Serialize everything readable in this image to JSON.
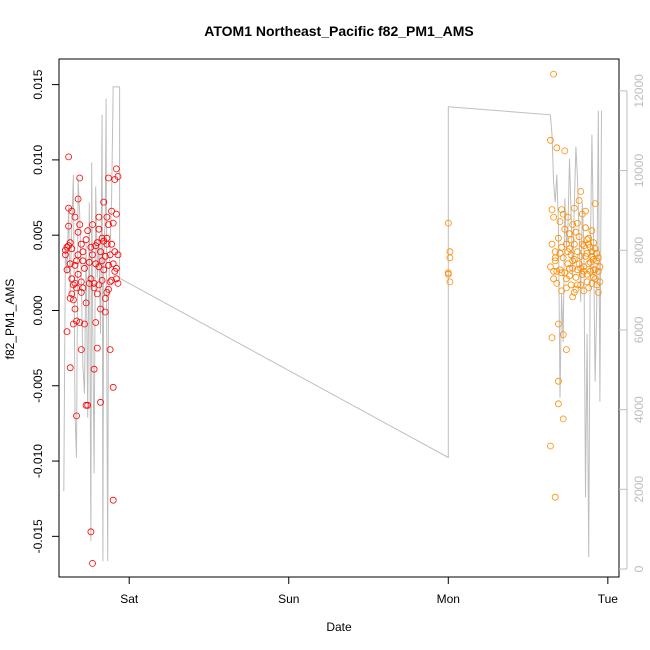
{
  "chart_data": {
    "type": "scatter",
    "title": "ATOM1 Northeast_Pacific f82_PM1_AMS",
    "xlabel": "Date",
    "ylabel": "f82_PM1_AMS",
    "x_ticks": [
      "Sat",
      "Sun",
      "Mon",
      "Tue"
    ],
    "x_tick_values": [
      0,
      1,
      2,
      3
    ],
    "xlim": [
      -0.44,
      3.07
    ],
    "y_ticks": [
      -0.015,
      -0.01,
      -0.005,
      0.0,
      0.005,
      0.01,
      0.015
    ],
    "y_tick_labels": [
      "-0.015",
      "-0.010",
      "-0.005",
      "0.000",
      "0.005",
      "0.010",
      "0.015"
    ],
    "ylim": [
      -0.0177,
      0.0167
    ],
    "y2_ticks": [
      0,
      2000,
      4000,
      6000,
      8000,
      10000,
      12000
    ],
    "y2_tick_labels": [
      "0",
      "2000",
      "4000",
      "6000",
      "8000",
      "10000",
      "12000"
    ],
    "y2lim": [
      -200,
      12800
    ],
    "grid": false,
    "colors": {
      "series_1": "#ff0000",
      "series_2": "#ff8c00",
      "secondary_line": "#bebebe",
      "frame": "#000000"
    },
    "series": [
      {
        "color": "#ff0000",
        "points": [
          [
            -0.4,
            0.004
          ],
          [
            -0.4,
            0.0037
          ],
          [
            -0.39,
            0.0042
          ],
          [
            -0.39,
            0.0027
          ],
          [
            -0.39,
            -0.0014
          ],
          [
            -0.38,
            0.0102
          ],
          [
            -0.38,
            0.0068
          ],
          [
            -0.38,
            0.0056
          ],
          [
            -0.38,
            0.0043
          ],
          [
            -0.37,
            0.0008
          ],
          [
            -0.37,
            -0.0038
          ],
          [
            -0.37,
            0.0031
          ],
          [
            -0.36,
            0.0021
          ],
          [
            -0.36,
            0.0066
          ],
          [
            -0.36,
            0.0041
          ],
          [
            -0.36,
            0.0011
          ],
          [
            -0.35,
            0.0017
          ],
          [
            -0.35,
            0.0007
          ],
          [
            -0.35,
            -0.0009
          ],
          [
            -0.34,
            0.0018
          ],
          [
            -0.34,
            0.0001
          ],
          [
            -0.34,
            0.0062
          ],
          [
            -0.34,
            0.003
          ],
          [
            -0.33,
            -0.0007
          ],
          [
            -0.33,
            -0.007
          ],
          [
            -0.33,
            0.0015
          ],
          [
            -0.32,
            0.0074
          ],
          [
            -0.32,
            0.0052
          ],
          [
            -0.32,
            0.0037
          ],
          [
            -0.32,
            0.0024
          ],
          [
            -0.31,
            -0.0008
          ],
          [
            -0.31,
            0.0088
          ],
          [
            -0.31,
            0.0057
          ],
          [
            -0.3,
            0.0044
          ],
          [
            -0.3,
            0.0019
          ],
          [
            -0.3,
            -0.0026
          ],
          [
            -0.29,
            0.0033
          ],
          [
            -0.29,
            0.0015
          ],
          [
            -0.28,
            0.0028
          ],
          [
            -0.28,
            -0.0009
          ],
          [
            -0.27,
            0.0047
          ],
          [
            -0.27,
            -0.0063
          ],
          [
            -0.26,
            0.0053
          ],
          [
            -0.26,
            -0.0063
          ],
          [
            -0.25,
            0.0018
          ],
          [
            -0.25,
            0.0032
          ],
          [
            -0.24,
            0.0042
          ],
          [
            -0.24,
            -0.0147
          ],
          [
            -0.23,
            -0.0168
          ],
          [
            -0.23,
            0.0057
          ],
          [
            -0.23,
            0.0037
          ],
          [
            -0.22,
            -0.0039
          ],
          [
            -0.22,
            0.0015
          ],
          [
            -0.22,
            0.0018
          ],
          [
            -0.21,
            0.0043
          ],
          [
            -0.21,
            -0.0008
          ],
          [
            -0.2,
            0.0045
          ],
          [
            -0.2,
            0.0011
          ],
          [
            -0.2,
            -0.0025
          ],
          [
            -0.19,
            0.0054
          ],
          [
            -0.19,
            0.0029
          ],
          [
            -0.19,
            0.0062
          ],
          [
            -0.18,
            0.0039
          ],
          [
            -0.18,
            -0.0061
          ],
          [
            -0.18,
            0.0001
          ],
          [
            -0.17,
            0.0048
          ],
          [
            -0.17,
            0.002
          ],
          [
            -0.17,
            0.0033
          ],
          [
            -0.16,
            0.0072
          ],
          [
            -0.16,
            0.0046
          ],
          [
            -0.16,
            0.0027
          ],
          [
            -0.15,
            0.0008
          ],
          [
            -0.15,
            -0.0001
          ],
          [
            -0.15,
            0.0036
          ],
          [
            -0.14,
            0.0062
          ],
          [
            -0.14,
            0.0044
          ],
          [
            -0.14,
            0.0012
          ],
          [
            -0.13,
            0.0088
          ],
          [
            -0.13,
            0.0057
          ],
          [
            -0.13,
            0.003
          ],
          [
            -0.12,
            0.0037
          ],
          [
            -0.12,
            0.0019
          ],
          [
            -0.12,
            -0.0026
          ],
          [
            -0.11,
            0.0066
          ],
          [
            -0.11,
            0.0044
          ],
          [
            -0.11,
            0.002
          ],
          [
            -0.1,
            -0.0051
          ],
          [
            -0.1,
            -0.0126
          ],
          [
            -0.1,
            0.0058
          ],
          [
            -0.09,
            0.0039
          ],
          [
            -0.09,
            0.0026
          ],
          [
            -0.09,
            0.0087
          ],
          [
            -0.08,
            0.0094
          ],
          [
            -0.08,
            0.0064
          ],
          [
            -0.08,
            0.0021
          ],
          [
            -0.07,
            0.0089
          ],
          [
            -0.07,
            0.0037
          ],
          [
            -0.07,
            0.0018
          ],
          [
            -0.37,
            0.0045
          ],
          [
            -0.29,
            0.0039
          ],
          [
            -0.27,
            0.0005
          ],
          [
            -0.24,
            0.0021
          ],
          [
            -0.21,
            0.0031
          ],
          [
            -0.13,
            0.0014
          ],
          [
            -0.1,
            0.0031
          ],
          [
            -0.08,
            0.0028
          ],
          [
            -0.14,
            0.0048
          ],
          [
            -0.19,
            0.0017
          ],
          [
            -0.33,
            0.0033
          ],
          [
            -0.3,
            0.0012
          ]
        ]
      },
      {
        "color": "#ff8c00",
        "points": [
          [
            2.0,
            0.0058
          ],
          [
            2.0,
            0.0025
          ],
          [
            2.0,
            0.0024
          ],
          [
            2.01,
            0.0039
          ],
          [
            2.01,
            0.0035
          ],
          [
            2.01,
            0.0019
          ],
          [
            2.64,
            0.0113
          ],
          [
            2.64,
            -0.009
          ],
          [
            2.64,
            0.0029
          ],
          [
            2.65,
            0.0044
          ],
          [
            2.65,
            0.0067
          ],
          [
            2.65,
            -0.0018
          ],
          [
            2.66,
            0.0026
          ],
          [
            2.66,
            0.0157
          ],
          [
            2.66,
            0.0062
          ],
          [
            2.67,
            0.0039
          ],
          [
            2.67,
            -0.0124
          ],
          [
            2.67,
            0.0035
          ],
          [
            2.68,
            0.0026
          ],
          [
            2.68,
            0.0108
          ],
          [
            2.68,
            0.0018
          ],
          [
            2.69,
            0.0048
          ],
          [
            2.69,
            -0.0062
          ],
          [
            2.69,
            -0.0047
          ],
          [
            2.7,
            0.0027
          ],
          [
            2.7,
            0.0038
          ],
          [
            2.7,
            0.0059
          ],
          [
            2.71,
            0.0013
          ],
          [
            2.71,
            0.0067
          ],
          [
            2.71,
            0.0025
          ],
          [
            2.72,
            -0.0016
          ],
          [
            2.72,
            -0.0072
          ],
          [
            2.72,
            0.0035
          ],
          [
            2.73,
            0.0106
          ],
          [
            2.73,
            0.0054
          ],
          [
            2.73,
            0.0025
          ],
          [
            2.74,
            0.0044
          ],
          [
            2.74,
            -0.0026
          ],
          [
            2.74,
            0.0015
          ],
          [
            2.75,
            0.0062
          ],
          [
            2.75,
            0.0031
          ],
          [
            2.75,
            0.0039
          ],
          [
            2.76,
            0.0023
          ],
          [
            2.76,
            0.0051
          ],
          [
            2.76,
            0.0028
          ],
          [
            2.77,
            0.0037
          ],
          [
            2.77,
            0.0017
          ],
          [
            2.77,
            0.0047
          ],
          [
            2.78,
            0.0057
          ],
          [
            2.78,
            0.0028
          ],
          [
            2.78,
            0.0009
          ],
          [
            2.79,
            0.0044
          ],
          [
            2.79,
            0.0068
          ],
          [
            2.79,
            0.0034
          ],
          [
            2.8,
            0.0022
          ],
          [
            2.8,
            0.0052
          ],
          [
            2.8,
            0.0014
          ],
          [
            2.81,
            0.0039
          ],
          [
            2.81,
            0.0058
          ],
          [
            2.81,
            0.0027
          ],
          [
            2.82,
            0.0073
          ],
          [
            2.82,
            0.0031
          ],
          [
            2.82,
            0.0049
          ],
          [
            2.83,
            0.0017
          ],
          [
            2.83,
            0.0079
          ],
          [
            2.83,
            0.0036
          ],
          [
            2.84,
            0.0044
          ],
          [
            2.84,
            0.0024
          ],
          [
            2.84,
            0.0064
          ],
          [
            2.85,
            0.0013
          ],
          [
            2.85,
            0.0043
          ],
          [
            2.85,
            0.0029
          ],
          [
            2.86,
            0.0055
          ],
          [
            2.86,
            0.0036
          ],
          [
            2.86,
            0.0066
          ],
          [
            2.87,
            0.0024
          ],
          [
            2.87,
            0.0047
          ],
          [
            2.87,
            0.0038
          ],
          [
            2.88,
            0.0015
          ],
          [
            2.88,
            0.0031
          ],
          [
            2.88,
            0.0044
          ],
          [
            2.89,
            0.0026
          ],
          [
            2.89,
            0.0042
          ],
          [
            2.89,
            0.0032
          ],
          [
            2.9,
            0.0053
          ],
          [
            2.9,
            0.0018
          ],
          [
            2.9,
            0.0039
          ],
          [
            2.91,
            0.0027
          ],
          [
            2.91,
            0.0045
          ],
          [
            2.91,
            0.0034
          ],
          [
            2.92,
            0.0021
          ],
          [
            2.92,
            0.0041
          ],
          [
            2.92,
            0.0071
          ],
          [
            2.93,
            0.0033
          ],
          [
            2.93,
            0.0017
          ],
          [
            2.93,
            0.0038
          ],
          [
            2.94,
            0.0026
          ],
          [
            2.94,
            0.0012
          ],
          [
            2.94,
            0.0035
          ],
          [
            2.95,
            0.0019
          ],
          [
            2.95,
            0.0029
          ],
          [
            2.72,
            0.0064
          ],
          [
            2.74,
            0.0021
          ],
          [
            2.78,
            0.0033
          ],
          [
            2.81,
            0.0017
          ],
          [
            2.85,
            0.0026
          ],
          [
            2.88,
            0.0048
          ],
          [
            2.91,
            0.0022
          ],
          [
            2.67,
            0.0033
          ],
          [
            2.69,
            -0.0009
          ],
          [
            2.76,
            0.0041
          ],
          [
            2.83,
            0.0028
          ],
          [
            2.87,
            0.0019
          ],
          [
            2.92,
            0.0027
          ],
          [
            2.66,
            0.0021
          ],
          [
            2.71,
            0.0042
          ],
          [
            2.79,
            0.0012
          ],
          [
            2.9,
            0.0036
          ]
        ]
      }
    ],
    "secondary_line": [
      [
        -0.41,
        1950
      ],
      [
        -0.4,
        8100
      ],
      [
        -0.39,
        7400
      ],
      [
        -0.38,
        9100
      ],
      [
        -0.37,
        6900
      ],
      [
        -0.36,
        8600
      ],
      [
        -0.35,
        9900
      ],
      [
        -0.34,
        3900
      ],
      [
        -0.33,
        2800
      ],
      [
        -0.32,
        9800
      ],
      [
        -0.31,
        8900
      ],
      [
        -0.3,
        7300
      ],
      [
        -0.29,
        5100
      ],
      [
        -0.28,
        4400
      ],
      [
        -0.27,
        8200
      ],
      [
        -0.26,
        3800
      ],
      [
        -0.25,
        9200
      ],
      [
        -0.24,
        700
      ],
      [
        -0.235,
        10200
      ],
      [
        -0.23,
        6800
      ],
      [
        -0.22,
        2400
      ],
      [
        -0.21,
        9600
      ],
      [
        -0.2,
        7300
      ],
      [
        -0.19,
        8300
      ],
      [
        -0.18,
        5900
      ],
      [
        -0.17,
        11400
      ],
      [
        -0.165,
        200
      ],
      [
        -0.16,
        7800
      ],
      [
        -0.15,
        8900
      ],
      [
        -0.145,
        11800
      ],
      [
        -0.14,
        4300
      ],
      [
        -0.135,
        200
      ],
      [
        -0.13,
        6900
      ],
      [
        -0.12,
        8100
      ],
      [
        -0.11,
        9300
      ],
      [
        -0.1,
        12100
      ],
      [
        -0.06,
        12100
      ],
      [
        -0.06,
        7300
      ],
      [
        2.0,
        2800
      ],
      [
        2.0,
        7300
      ],
      [
        2.0,
        11600
      ],
      [
        2.64,
        11400
      ],
      [
        2.65,
        10900
      ],
      [
        2.66,
        9700
      ],
      [
        2.67,
        9200
      ],
      [
        2.68,
        9900
      ],
      [
        2.69,
        8700
      ],
      [
        2.7,
        4300
      ],
      [
        2.71,
        6900
      ],
      [
        2.72,
        5700
      ],
      [
        2.73,
        9300
      ],
      [
        2.74,
        8100
      ],
      [
        2.75,
        8500
      ],
      [
        2.76,
        10300
      ],
      [
        2.77,
        8900
      ],
      [
        2.78,
        7300
      ],
      [
        2.79,
        9100
      ],
      [
        2.8,
        10600
      ],
      [
        2.81,
        9800
      ],
      [
        2.82,
        8400
      ],
      [
        2.83,
        6700
      ],
      [
        2.84,
        9200
      ],
      [
        2.85,
        8100
      ],
      [
        2.86,
        1800
      ],
      [
        2.87,
        5900
      ],
      [
        2.88,
        300
      ],
      [
        2.89,
        7800
      ],
      [
        2.9,
        10900
      ],
      [
        2.91,
        8300
      ],
      [
        2.92,
        4700
      ],
      [
        2.93,
        6600
      ],
      [
        2.94,
        11500
      ],
      [
        2.95,
        4200
      ],
      [
        2.96,
        11500
      ]
    ]
  }
}
